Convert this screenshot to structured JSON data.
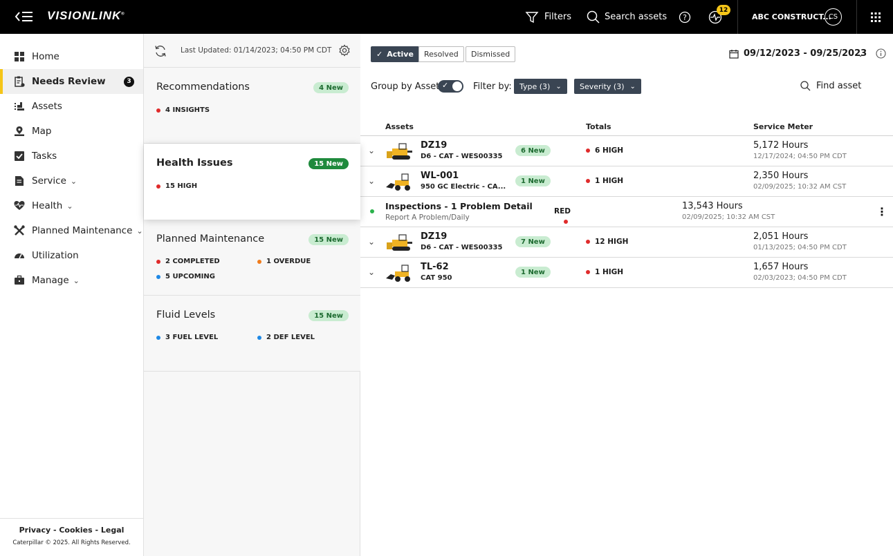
{
  "app": {
    "logo_text": "VISIONLINK",
    "logo_mark": "®",
    "header": {
      "filters_label": "Filters",
      "search_label": "Search assets",
      "notification_count": "12",
      "account_name": "ABC CONSTRUCT...",
      "user_initials": "CS"
    }
  },
  "sidebar": {
    "items": [
      {
        "label": "Home",
        "icon": "home-icon"
      },
      {
        "label": "Needs Review",
        "icon": "clipboard-alert-icon",
        "count": "3",
        "active": true
      },
      {
        "label": "Assets",
        "icon": "assets-icon"
      },
      {
        "label": "Map",
        "icon": "map-icon"
      },
      {
        "label": "Tasks",
        "icon": "tasks-icon"
      },
      {
        "label": "Service",
        "icon": "service-icon",
        "has_submenu": true
      },
      {
        "label": "Health",
        "icon": "health-icon",
        "has_submenu": true
      },
      {
        "label": "Planned Maintenance",
        "icon": "wrench-icon",
        "has_submenu": true
      },
      {
        "label": "Utilization",
        "icon": "gauge-icon"
      },
      {
        "label": "Manage",
        "icon": "briefcase-icon",
        "has_submenu": true
      }
    ],
    "footer_links": "Privacy - Cookies - Legal",
    "copyright": "Caterpillar © 2025. All Rights Reserved."
  },
  "middle": {
    "last_updated": "Last Updated: 01/14/2023; 04:50 PM CDT",
    "cards": [
      {
        "title": "Recommendations",
        "badge": "4 New",
        "stats": [
          {
            "label": "4 INSIGHTS",
            "color": "#e02b2b"
          }
        ]
      },
      {
        "title": "Health Issues",
        "badge": "15 New",
        "selected": true,
        "stats": [
          {
            "label": "15 HIGH",
            "color": "#e02b2b"
          }
        ]
      },
      {
        "title": "Planned Maintenance",
        "badge": "15 New",
        "stats": [
          {
            "label": "2 COMPLETED",
            "color": "#e02b2b"
          },
          {
            "label": "1 OVERDUE",
            "color": "#f07c1c"
          },
          {
            "label": "5 UPCOMING",
            "color": "#1e88e5"
          }
        ]
      },
      {
        "title": "Fluid Levels",
        "badge": "15 New",
        "stats": [
          {
            "label": "3 FUEL LEVEL",
            "color": "#1e88e5"
          },
          {
            "label": "2 DEF LEVEL",
            "color": "#1e88e5"
          }
        ]
      }
    ]
  },
  "main": {
    "status_tabs": [
      {
        "label": "Active",
        "selected": true
      },
      {
        "label": "Resolved"
      },
      {
        "label": "Dismissed"
      }
    ],
    "date_range": "09/12/2023 - 09/25/2023",
    "group_by_label": "Group by Asset",
    "group_by_enabled": true,
    "filter_by_label": "Filter by:",
    "filters": [
      {
        "label": "Type (3)"
      },
      {
        "label": "Severity (3)"
      }
    ],
    "find_asset_label": "Find asset",
    "columns": {
      "assets": "Assets",
      "totals": "Totals",
      "service_meter": "Service Meter"
    },
    "rows": [
      {
        "kind": "asset",
        "name": "DZ19",
        "model": "D6 - CAT - WES00335",
        "badge": "6 New",
        "total": "6 HIGH",
        "hours": "5,172 Hours",
        "date": "12/17/2024; 04:50 PM CDT",
        "machine": "dozer"
      },
      {
        "kind": "asset",
        "name": "WL-001",
        "model": "950 GC Electric - CA...",
        "badge": "1 New",
        "total": "1 HIGH",
        "hours": "2,350 Hours",
        "date": "02/09/2025; 10:32 AM CST",
        "machine": "loader"
      },
      {
        "kind": "issue",
        "name": "Inspections - 1 Problem Detail",
        "sub": "Report A Problem/Daily",
        "total": "RED",
        "hours": "13,543 Hours",
        "date": "02/09/2025; 10:32 AM CST"
      },
      {
        "kind": "asset",
        "name": "DZ19",
        "model": "D6 - CAT - WES00335",
        "badge": "7 New",
        "total": "12 HIGH",
        "hours": "2,051 Hours",
        "date": "01/13/2025; 04:50 PM CDT",
        "machine": "dozer"
      },
      {
        "kind": "asset",
        "name": "TL-62",
        "model": "CAT 950",
        "badge": "1 New",
        "total": "1 HIGH",
        "hours": "1,657 Hours",
        "date": "02/03/2023; 04:50 PM CDT",
        "machine": "loader"
      }
    ]
  },
  "colors": {
    "brand_yellow": "#f5c518",
    "high": "#e02b2b",
    "green_dot": "#2bb24c",
    "chip": "#3a4553",
    "badge_light": "#c9ecd1",
    "badge_dark": "#1f8a3d"
  }
}
